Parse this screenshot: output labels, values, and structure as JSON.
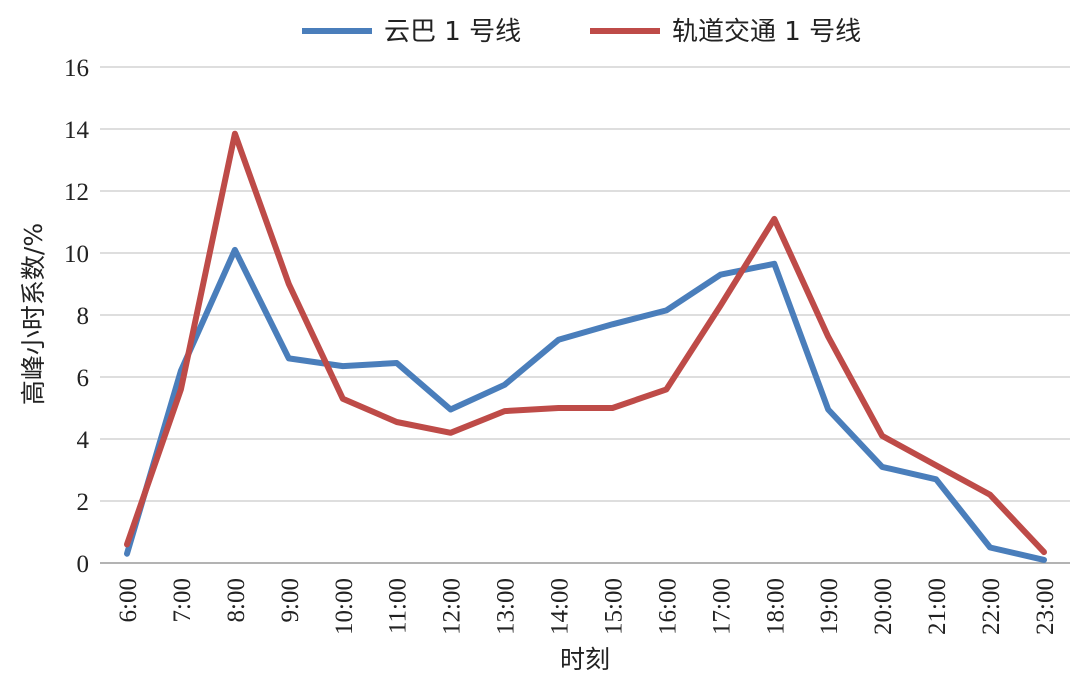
{
  "chart_data": {
    "type": "line",
    "xlabel": "时刻",
    "ylabel": "高峰小时系数/%",
    "categories": [
      "6:00",
      "7:00",
      "8:00",
      "9:00",
      "10:00",
      "11:00",
      "12:00",
      "13:00",
      "14:00",
      "15:00",
      "16:00",
      "17:00",
      "18:00",
      "19:00",
      "20:00",
      "21:00",
      "22:00",
      "23:00"
    ],
    "ylim": [
      0,
      16
    ],
    "yticks": [
      0,
      2,
      4,
      6,
      8,
      10,
      12,
      14,
      16
    ],
    "grid": true,
    "legend_position": "top",
    "series": [
      {
        "name": "云巴 1 号线",
        "color": "#4a7ebb",
        "values": [
          0.3,
          6.2,
          10.1,
          6.6,
          6.35,
          6.45,
          4.95,
          5.75,
          7.2,
          7.7,
          8.15,
          9.3,
          9.65,
          4.95,
          3.1,
          2.7,
          0.5,
          0.1
        ]
      },
      {
        "name": "轨道交通 1 号线",
        "color": "#be4b48",
        "values": [
          0.6,
          5.6,
          13.85,
          9.0,
          5.3,
          4.55,
          4.2,
          4.9,
          5.0,
          5.0,
          5.6,
          8.3,
          11.1,
          7.3,
          4.1,
          3.15,
          2.2,
          0.35
        ]
      }
    ]
  }
}
